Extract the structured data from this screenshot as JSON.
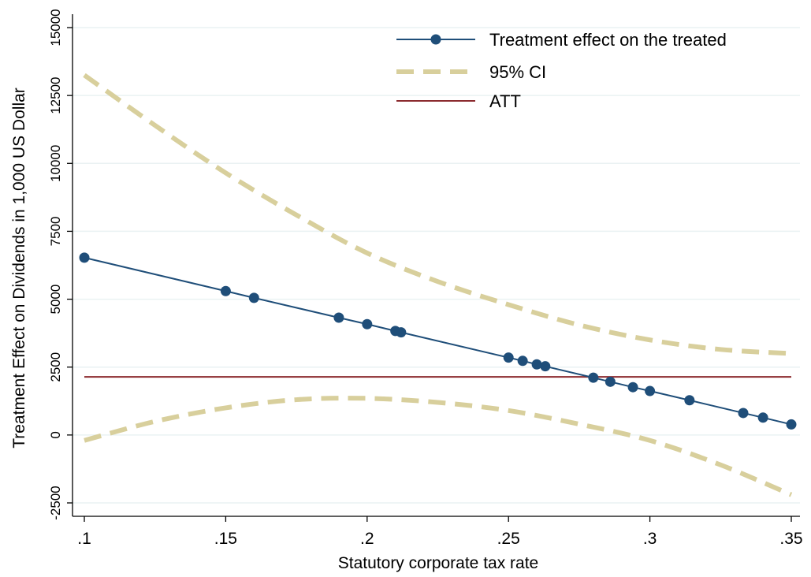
{
  "chart_data": {
    "type": "line",
    "xlabel": "Statutory corporate tax rate",
    "ylabel": "Treatment Effect on Dividends in 1,000 US Dollar",
    "xlim": [
      0.1,
      0.35
    ],
    "ylim": [
      -2500,
      15000
    ],
    "x_ticks": [
      {
        "value": 0.1,
        "label": ".1"
      },
      {
        "value": 0.15,
        "label": ".15"
      },
      {
        "value": 0.2,
        "label": ".2"
      },
      {
        "value": 0.25,
        "label": ".25"
      },
      {
        "value": 0.3,
        "label": ".3"
      },
      {
        "value": 0.35,
        "label": ".35"
      }
    ],
    "y_ticks": [
      {
        "value": -2500,
        "label": "-2500"
      },
      {
        "value": 0,
        "label": "0"
      },
      {
        "value": 2500,
        "label": "2500"
      },
      {
        "value": 5000,
        "label": "5000"
      },
      {
        "value": 7500,
        "label": "7500"
      },
      {
        "value": 10000,
        "label": "10000"
      },
      {
        "value": 12500,
        "label": "12500"
      },
      {
        "value": 15000,
        "label": "15000"
      }
    ],
    "grid": "horizontal",
    "legend_position": "top-right",
    "series": [
      {
        "name": "Treatment effect on the treated",
        "kind": "line-markers",
        "color": "#1f4e79",
        "x": [
          0.1,
          0.15,
          0.16,
          0.19,
          0.2,
          0.21,
          0.212,
          0.25,
          0.255,
          0.26,
          0.263,
          0.28,
          0.286,
          0.294,
          0.3,
          0.314,
          0.333,
          0.34,
          0.35
        ],
        "y": [
          6530,
          5300,
          5050,
          4320,
          4080,
          3830,
          3780,
          2850,
          2730,
          2600,
          2530,
          2110,
          1960,
          1760,
          1620,
          1280,
          810,
          640,
          390
        ]
      },
      {
        "name": "95% CI",
        "kind": "dashed",
        "color": "#d8cf9c",
        "upper": {
          "x": [
            0.1,
            0.125,
            0.15,
            0.175,
            0.2,
            0.225,
            0.25,
            0.275,
            0.3,
            0.325,
            0.35
          ],
          "y": [
            13250,
            11400,
            9650,
            8100,
            6700,
            5650,
            4800,
            4050,
            3500,
            3150,
            3000
          ]
        },
        "lower": {
          "x": [
            0.1,
            0.125,
            0.15,
            0.175,
            0.2,
            0.225,
            0.25,
            0.275,
            0.3,
            0.325,
            0.35
          ],
          "y": [
            -200,
            500,
            1000,
            1300,
            1350,
            1200,
            900,
            400,
            -200,
            -1100,
            -2200
          ]
        }
      },
      {
        "name": "ATT",
        "kind": "hline",
        "color": "#8b2a2e",
        "y": 2140
      }
    ]
  }
}
